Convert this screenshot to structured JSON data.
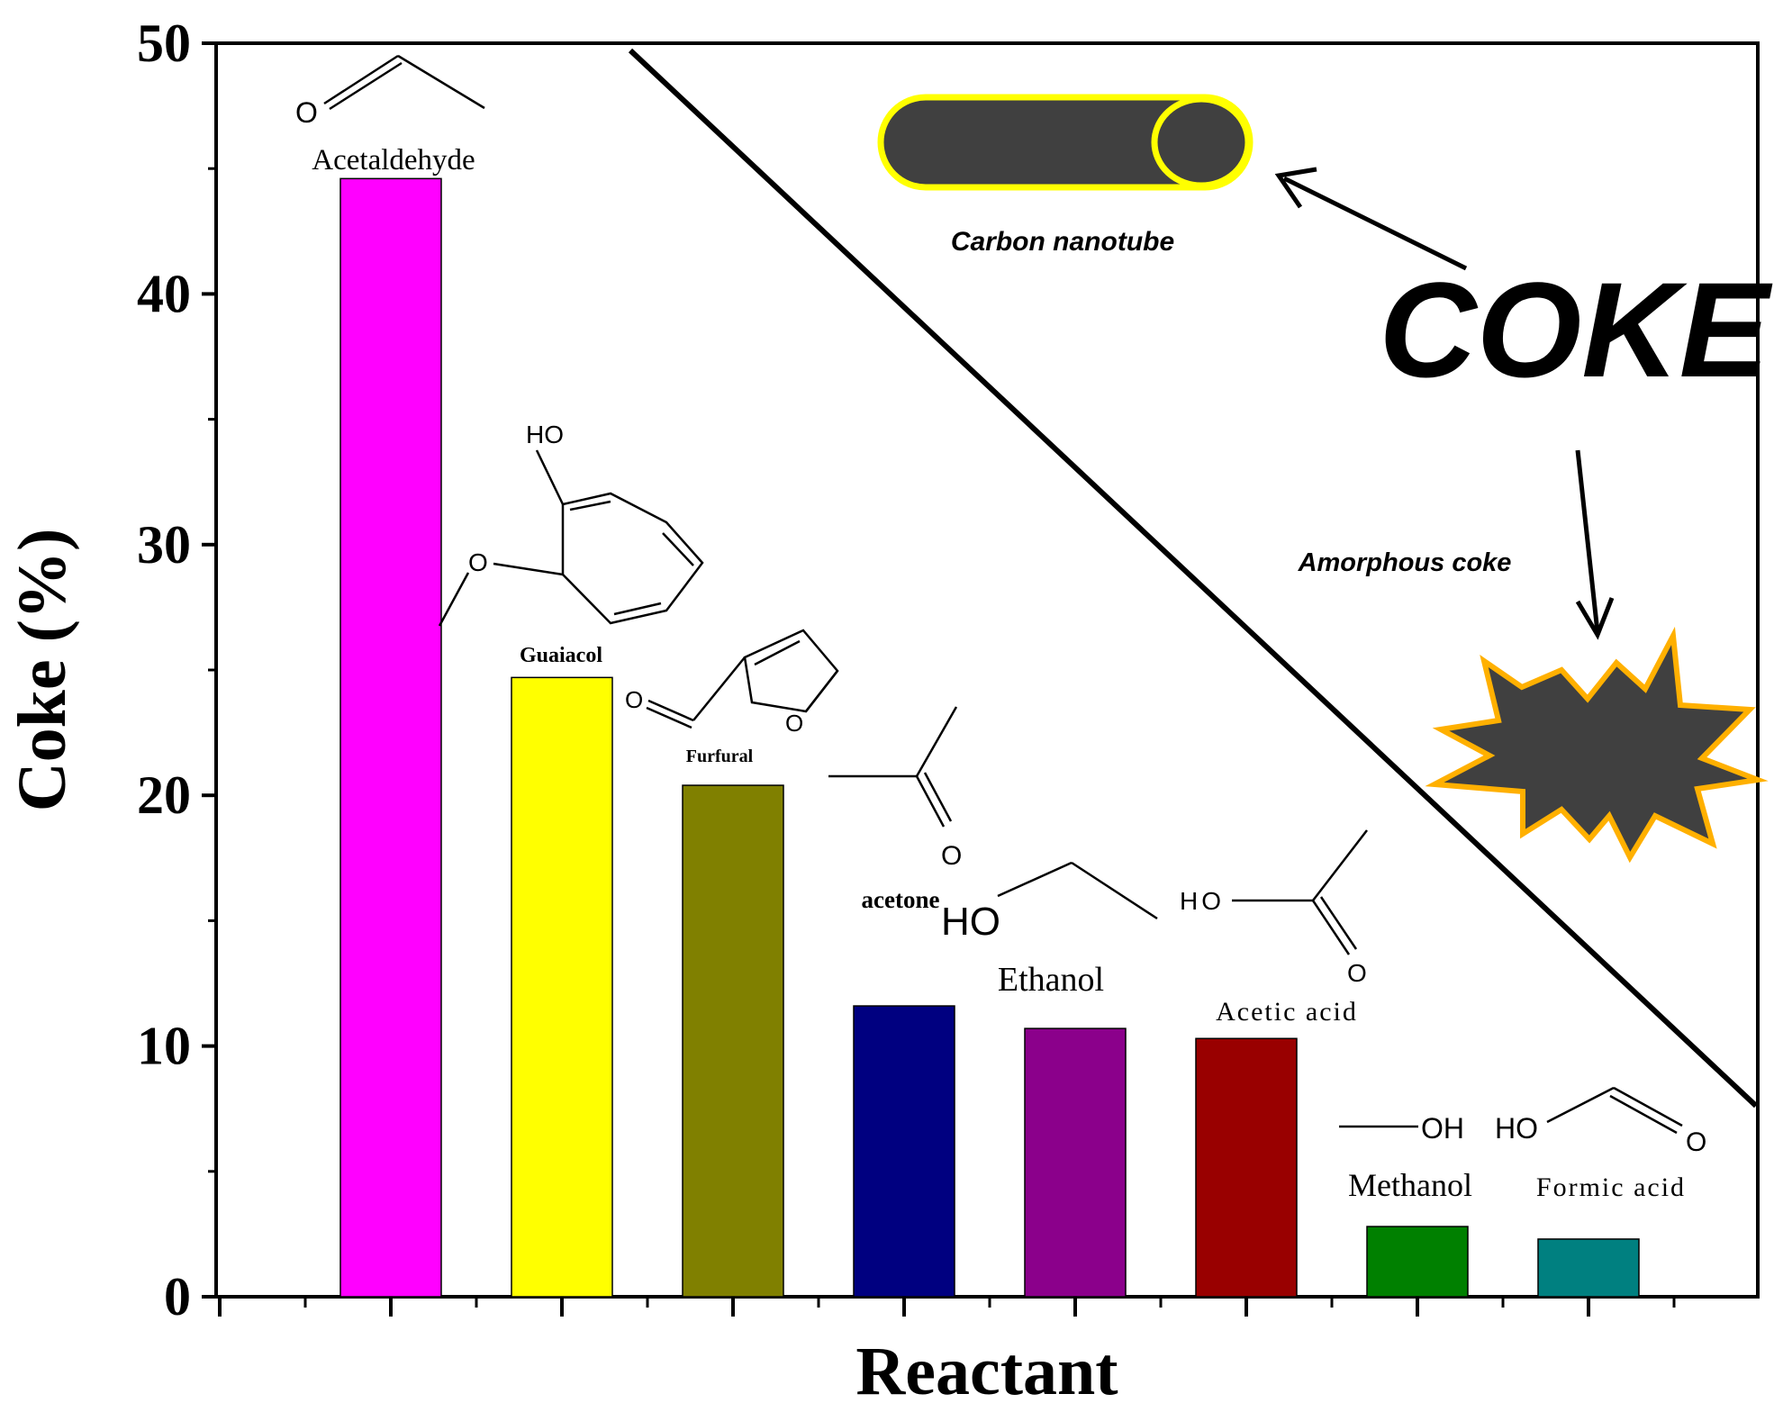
{
  "chart_data": {
    "type": "bar",
    "categories": [
      "Acetaldehyde",
      "Guaiacol",
      "Furfural",
      "acetone",
      "Ethanol",
      "Acetic acid",
      "Methanol",
      "Formic acid"
    ],
    "values": [
      44.6,
      24.7,
      20.4,
      11.6,
      10.7,
      10.3,
      2.8,
      2.3
    ],
    "colors": [
      "#ff00ff",
      "#ffff00",
      "#808000",
      "#000080",
      "#8b008b",
      "#990000",
      "#008000",
      "#008080"
    ],
    "xlabel": "Reactant",
    "ylabel": "Coke (%)",
    "ylim": [
      0,
      50
    ],
    "yticks": [
      "0",
      "10",
      "20",
      "30",
      "40",
      "50"
    ],
    "grid": false,
    "annotations": {
      "coke": "COKE",
      "carbon_nanotube": "Carbon nanotube",
      "amorphous_coke": "Amorphous coke"
    },
    "structure_labels": {
      "O": "O",
      "HO": "HO",
      "OH": "OH"
    }
  }
}
